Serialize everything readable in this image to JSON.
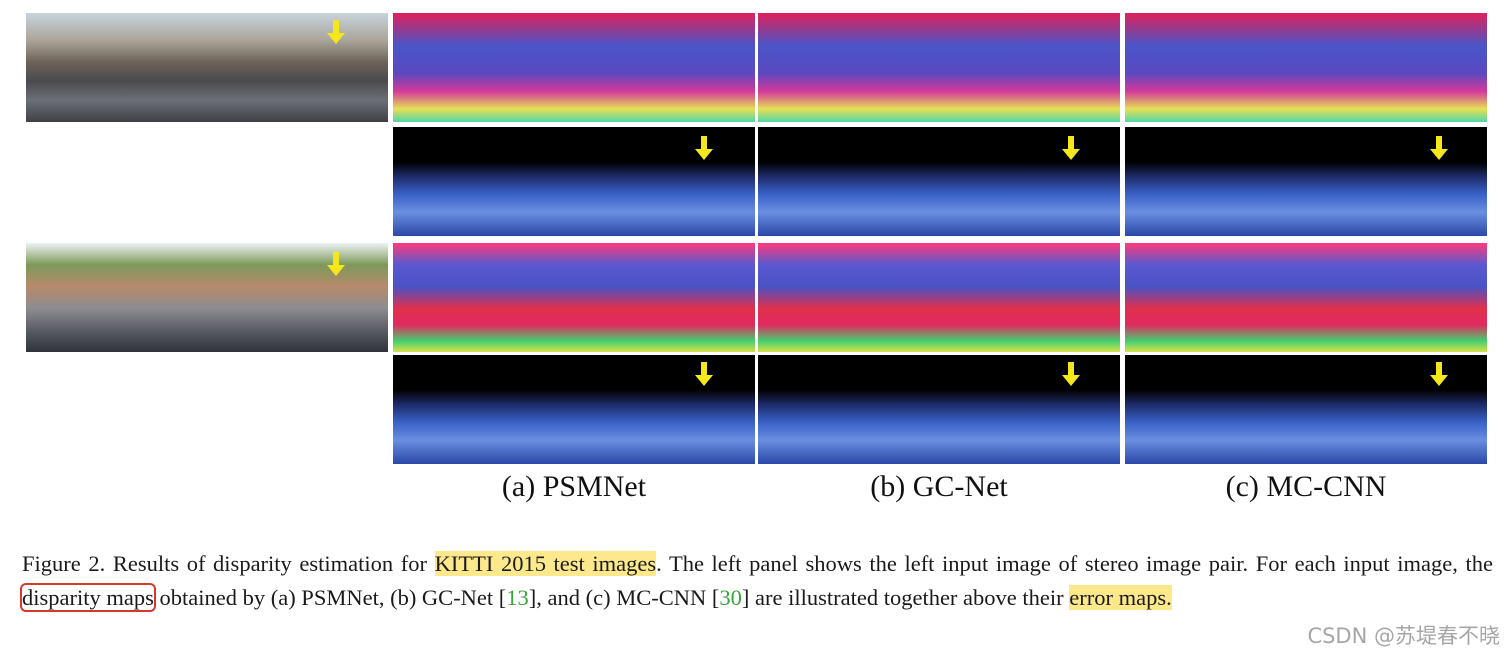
{
  "figure": {
    "labels": [
      "(a) PSMNet",
      "(b) GC-Net",
      "(c) MC-CNN"
    ],
    "caption": [
      "Figure 2. Results of disparity estimation for ",
      "KITTI 2015 test images",
      ". The left panel shows the left input image of stereo image pair. For each input image, the ",
      "disparity maps",
      " obtained by (a) PSMNet, (b) GC-Net [",
      "13",
      "], and (c) MC-CNN [",
      "30",
      "] are illustrated together above their ",
      "error maps."
    ],
    "watermark": "CSDN @苏堤春不晓"
  }
}
